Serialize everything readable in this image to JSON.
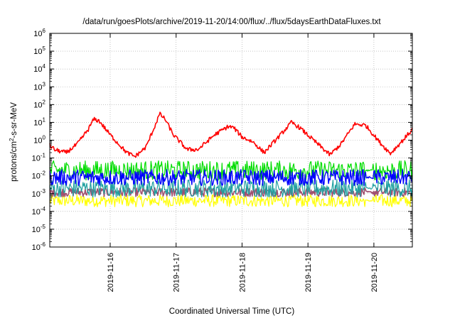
{
  "chart_data": {
    "type": "line",
    "title": "/data/run/goesPlots/archive/2019-11-20/14:00/flux/../flux/5daysEarthDataFluxes.txt",
    "xlabel": "Coordinated Universal Time (UTC)",
    "ylabel": {
      "base": "protons/cm",
      "sup": "2",
      "rest": "-s-sr-MeV"
    },
    "y_scale": "log",
    "ylim_exp": [
      -6,
      6
    ],
    "yticks": [
      {
        "exp": -6,
        "label": "10",
        "sup": "-6"
      },
      {
        "exp": -5,
        "label": "10",
        "sup": "-5"
      },
      {
        "exp": -4,
        "label": "10",
        "sup": "-4"
      },
      {
        "exp": -3,
        "label": "10",
        "sup": "-3"
      },
      {
        "exp": -2,
        "label": "10",
        "sup": "-2"
      },
      {
        "exp": -1,
        "label": "10",
        "sup": "-1"
      },
      {
        "exp": 0,
        "label": "10",
        "sup": "0"
      },
      {
        "exp": 1,
        "label": "10",
        "sup": "1"
      },
      {
        "exp": 2,
        "label": "10",
        "sup": "2"
      },
      {
        "exp": 3,
        "label": "10",
        "sup": "3"
      },
      {
        "exp": 4,
        "label": "10",
        "sup": "4"
      },
      {
        "exp": 5,
        "label": "10",
        "sup": "5"
      },
      {
        "exp": 6,
        "label": "10",
        "sup": "6"
      }
    ],
    "x_start": "2019-11-15T02:00",
    "x_end": "2019-11-20T14:00",
    "xticks": [
      {
        "t": "2019-11-16T00:00",
        "label": "2019-11-16"
      },
      {
        "t": "2019-11-17T00:00",
        "label": "2019-11-17"
      },
      {
        "t": "2019-11-18T00:00",
        "label": "2019-11-18"
      },
      {
        "t": "2019-11-19T00:00",
        "label": "2019-11-19"
      },
      {
        "t": "2019-11-20T00:00",
        "label": "2019-11-20"
      }
    ],
    "grid": true,
    "legend": "none",
    "series": [
      {
        "color": "#ffff00",
        "level": 0.0004,
        "noise_dex": 0.35,
        "width": 1.2
      },
      {
        "color": "#a05070",
        "level": 0.0012,
        "noise_dex": 0.25,
        "width": 1.6
      },
      {
        "color": "#20a0a0",
        "level": 0.002,
        "noise_dex": 0.5,
        "width": 1.2
      },
      {
        "color": "#00dd00",
        "level": 0.02,
        "noise_dex": 0.55,
        "width": 1.2
      },
      {
        "color": "#0000ff",
        "level": 0.008,
        "noise_dex": 0.45,
        "width": 1.4
      },
      {
        "color": "#ff0000",
        "width": 1.6,
        "noise_dex": 0.12,
        "profile": [
          [
            "2019-11-15T02:00",
            0.5
          ],
          [
            "2019-11-15T04:00",
            0.28
          ],
          [
            "2019-11-15T08:00",
            0.2
          ],
          [
            "2019-11-15T12:00",
            0.6
          ],
          [
            "2019-11-15T16:00",
            4
          ],
          [
            "2019-11-15T18:00",
            15
          ],
          [
            "2019-11-15T20:00",
            12
          ],
          [
            "2019-11-16T00:00",
            2
          ],
          [
            "2019-11-16T06:00",
            0.2
          ],
          [
            "2019-11-16T09:00",
            0.12
          ],
          [
            "2019-11-16T13:00",
            0.4
          ],
          [
            "2019-11-16T16:00",
            5
          ],
          [
            "2019-11-16T18:00",
            30
          ],
          [
            "2019-11-16T20:00",
            15
          ],
          [
            "2019-11-16T23:00",
            2
          ],
          [
            "2019-11-17T04:00",
            0.3
          ],
          [
            "2019-11-17T08:00",
            0.3
          ],
          [
            "2019-11-17T14:00",
            2
          ],
          [
            "2019-11-17T19:00",
            6
          ],
          [
            "2019-11-17T21:00",
            5
          ],
          [
            "2019-11-18T00:00",
            1.5
          ],
          [
            "2019-11-18T04:00",
            0.8
          ],
          [
            "2019-11-18T08:00",
            0.2
          ],
          [
            "2019-11-18T14:00",
            2
          ],
          [
            "2019-11-18T18:00",
            10
          ],
          [
            "2019-11-18T21:00",
            5
          ],
          [
            "2019-11-19T02:00",
            1
          ],
          [
            "2019-11-19T08:00",
            0.15
          ],
          [
            "2019-11-19T12:00",
            0.6
          ],
          [
            "2019-11-19T17:00",
            8
          ],
          [
            "2019-11-19T21:00",
            7
          ],
          [
            "2019-11-20T02:00",
            0.8
          ],
          [
            "2019-11-20T06:00",
            0.18
          ],
          [
            "2019-11-20T10:00",
            0.8
          ],
          [
            "2019-11-20T14:00",
            4
          ]
        ]
      }
    ]
  }
}
